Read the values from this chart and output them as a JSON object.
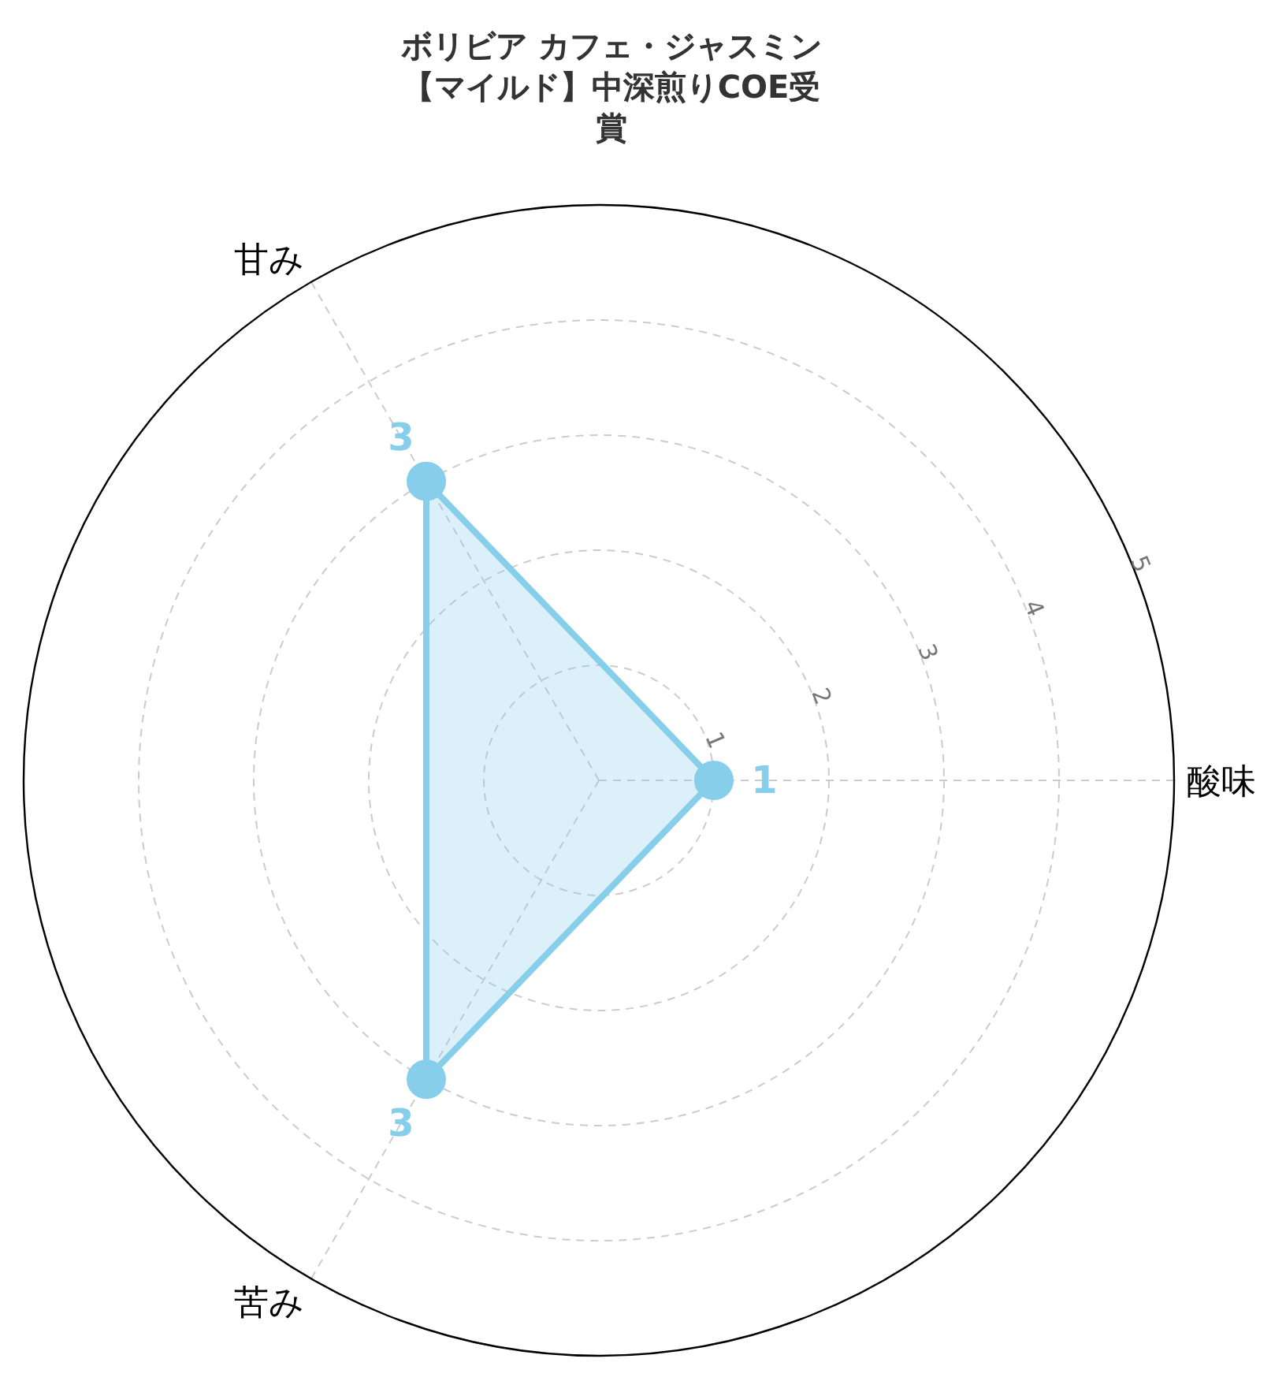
{
  "chart_data": {
    "type": "radar",
    "title": "ボリビア カフェ・ジャスミン【マイルド】中深煎りCOE受賞",
    "categories": [
      "酸味",
      "苦み",
      "甘み"
    ],
    "series": [
      {
        "color": "#87ceeb",
        "values": [
          1,
          3,
          3
        ]
      }
    ],
    "ylim": [
      0,
      5
    ],
    "yticks": [
      1,
      2,
      3,
      4,
      5
    ],
    "grid": true,
    "data_labels": true,
    "marker": "circle",
    "legend": false
  }
}
